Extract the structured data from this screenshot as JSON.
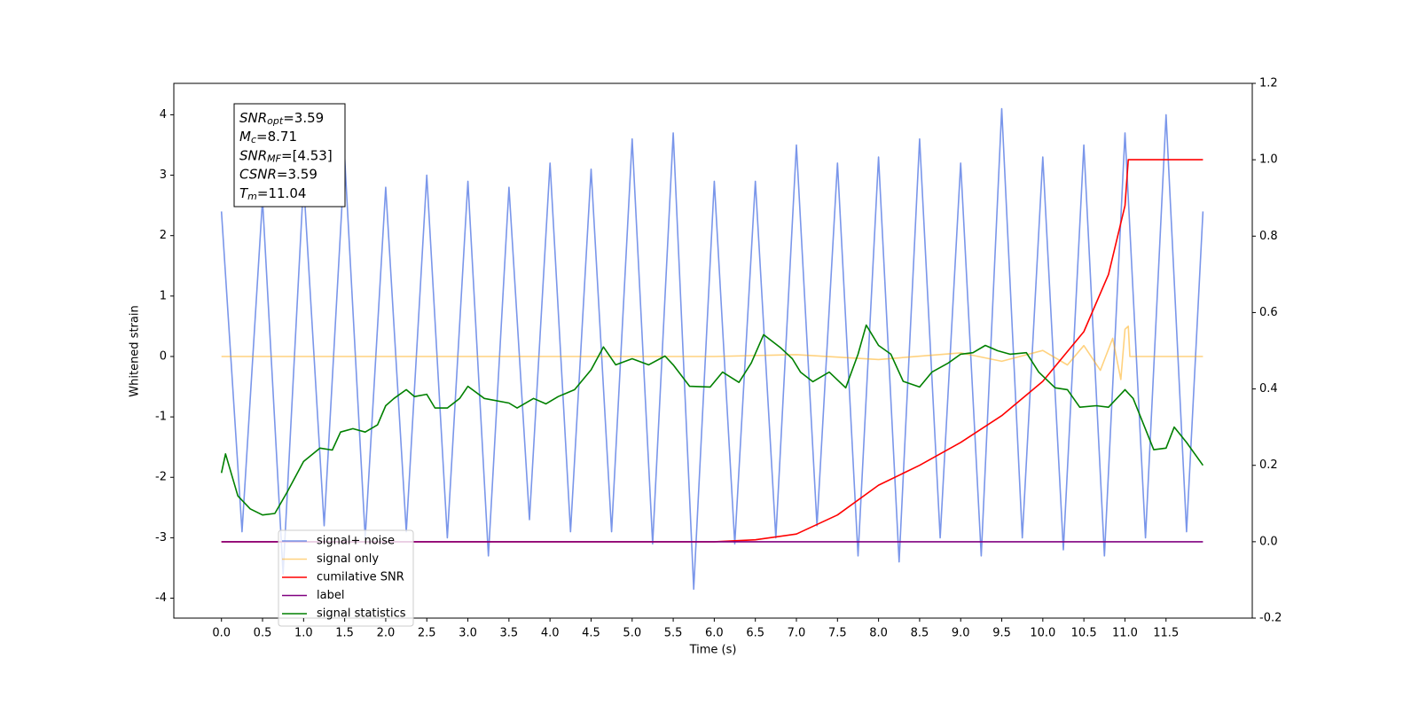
{
  "chart_data": {
    "type": "line",
    "xlabel": "Time (s)",
    "ylabel": "Whitened strain",
    "xlim": [
      -0.58,
      12.55
    ],
    "ylim": [
      -4.33,
      4.52
    ],
    "y2lim": [
      -0.2,
      1.2
    ],
    "xticks": [
      {
        "value": 0,
        "label": "0.0"
      },
      0.5,
      {
        "value": 1,
        "label": "1.0"
      },
      1.5,
      {
        "value": 2,
        "label": "2.0"
      },
      2.5,
      {
        "value": 3,
        "label": "3.0"
      },
      3.5,
      {
        "value": 4,
        "label": "4.0"
      },
      4.5,
      {
        "value": 5,
        "label": "5.0"
      },
      5.5,
      {
        "value": 6,
        "label": "6.0"
      },
      6.5,
      {
        "value": 7,
        "label": "7.0"
      },
      7.5,
      {
        "value": 8,
        "label": "8.0"
      },
      8.5,
      {
        "value": 9,
        "label": "9.0"
      },
      9.5,
      {
        "value": 10,
        "label": "10.0"
      },
      10.5,
      {
        "value": 11,
        "label": "11.0"
      },
      11.5
    ],
    "yticks": [
      -4,
      -3,
      -2,
      -1,
      0,
      1,
      2,
      3,
      4
    ],
    "y2ticks": [
      -0.2,
      {
        "value": 0,
        "label": "0.0"
      },
      0.2,
      0.4,
      0.6,
      0.8,
      {
        "value": 1,
        "label": "1.0"
      },
      1.2
    ],
    "legend": "lower left",
    "series": [
      {
        "name": "signal+ noise",
        "color": "#4169e1",
        "opacity": 0.7,
        "x": [
          0,
          0.25,
          0.5,
          0.75,
          1,
          1.25,
          1.5,
          1.75,
          2,
          2.25,
          2.5,
          2.75,
          3,
          3.25,
          3.5,
          3.75,
          4,
          4.25,
          4.5,
          4.75,
          5,
          5.25,
          5.5,
          5.75,
          6,
          6.25,
          6.5,
          6.75,
          7,
          7.25,
          7.5,
          7.75,
          8,
          8.25,
          8.5,
          8.75,
          9,
          9.25,
          9.5,
          9.75,
          10,
          10.25,
          10.5,
          10.75,
          11,
          11.25,
          11.5,
          11.75,
          11.95
        ],
        "values": [
          2.4,
          -2.9,
          2.6,
          -3.6,
          2.9,
          -2.8,
          3.3,
          -3.0,
          2.8,
          -2.9,
          3.0,
          -3.0,
          2.9,
          -3.3,
          2.8,
          -2.7,
          3.2,
          -2.9,
          3.1,
          -2.9,
          3.6,
          -3.1,
          3.7,
          -3.85,
          2.9,
          -3.1,
          2.9,
          -3.0,
          3.5,
          -2.8,
          3.2,
          -3.3,
          3.3,
          -3.4,
          3.6,
          -3.0,
          3.2,
          -3.3,
          4.1,
          -3.0,
          3.3,
          -3.2,
          3.5,
          -3.3,
          3.7,
          -3.0,
          4.0,
          -2.9,
          2.4
        ]
      },
      {
        "name": "signal only",
        "color": "#ffa500",
        "opacity": 0.5,
        "x": [
          0,
          6,
          7,
          8,
          9,
          9.5,
          10,
          10.3,
          10.5,
          10.7,
          10.85,
          10.95,
          11.0,
          11.04,
          11.06,
          11.95
        ],
        "values": [
          0,
          0,
          0.03,
          -0.05,
          0.06,
          -0.08,
          0.1,
          -0.14,
          0.18,
          -0.23,
          0.3,
          -0.38,
          0.45,
          0.5,
          0,
          0
        ]
      },
      {
        "name": "cumilative SNR",
        "color": "#ff0000",
        "opacity": 1,
        "axis": "y2",
        "x": [
          0,
          6,
          6.5,
          7,
          7.5,
          8,
          8.5,
          9,
          9.5,
          10,
          10.5,
          10.8,
          11,
          11.04,
          11.95
        ],
        "values": [
          0,
          0,
          0.005,
          0.02,
          0.07,
          0.148,
          0.2,
          0.26,
          0.33,
          0.42,
          0.55,
          0.7,
          0.88,
          1,
          1
        ]
      },
      {
        "name": "label",
        "color": "#800080",
        "opacity": 1,
        "axis": "y2",
        "x": [
          0,
          11.95
        ],
        "values": [
          0,
          0
        ]
      },
      {
        "name": "signal statistics",
        "color": "#008000",
        "opacity": 1,
        "axis": "y2",
        "x": [
          0,
          0.05,
          0.2,
          0.35,
          0.5,
          0.65,
          0.8,
          1,
          1.2,
          1.35,
          1.45,
          1.6,
          1.75,
          1.9,
          2,
          2.1,
          2.25,
          2.35,
          2.5,
          2.6,
          2.75,
          2.9,
          3,
          3.2,
          3.5,
          3.6,
          3.8,
          3.95,
          4.1,
          4.3,
          4.5,
          4.65,
          4.8,
          5,
          5.2,
          5.4,
          5.5,
          5.7,
          5.95,
          6.1,
          6.3,
          6.45,
          6.6,
          6.8,
          6.95,
          7.05,
          7.2,
          7.4,
          7.6,
          7.75,
          7.85,
          8,
          8.15,
          8.3,
          8.5,
          8.65,
          8.85,
          9,
          9.15,
          9.3,
          9.45,
          9.6,
          9.8,
          9.95,
          10.15,
          10.3,
          10.45,
          10.65,
          10.8,
          11,
          11.1,
          11.35,
          11.5,
          11.6,
          11.75,
          11.95
        ],
        "values": [
          0.18,
          0.23,
          0.12,
          0.086,
          0.07,
          0.074,
          0.13,
          0.21,
          0.245,
          0.24,
          0.287,
          0.296,
          0.287,
          0.306,
          0.356,
          0.375,
          0.398,
          0.38,
          0.386,
          0.35,
          0.35,
          0.375,
          0.407,
          0.375,
          0.363,
          0.35,
          0.375,
          0.361,
          0.38,
          0.398,
          0.45,
          0.51,
          0.463,
          0.479,
          0.463,
          0.486,
          0.463,
          0.407,
          0.405,
          0.444,
          0.417,
          0.468,
          0.542,
          0.509,
          0.479,
          0.444,
          0.419,
          0.444,
          0.403,
          0.491,
          0.567,
          0.514,
          0.491,
          0.42,
          0.405,
          0.444,
          0.468,
          0.491,
          0.495,
          0.514,
          0.5,
          0.491,
          0.495,
          0.444,
          0.403,
          0.398,
          0.352,
          0.356,
          0.352,
          0.398,
          0.375,
          0.241,
          0.245,
          0.3,
          0.26,
          0.2
        ]
      }
    ],
    "annotation": [
      {
        "main": "SNR",
        "sub": "opt",
        "rest": "=3.59"
      },
      {
        "main": "M",
        "sub": "c",
        "rest": "=8.71"
      },
      {
        "main": "SNR",
        "sub": "MF",
        "rest": "=[4.53]"
      },
      {
        "main": "CSNR",
        "rest": "=3.59"
      },
      {
        "main": "T",
        "sub": "m",
        "rest": "=11.04"
      }
    ]
  }
}
